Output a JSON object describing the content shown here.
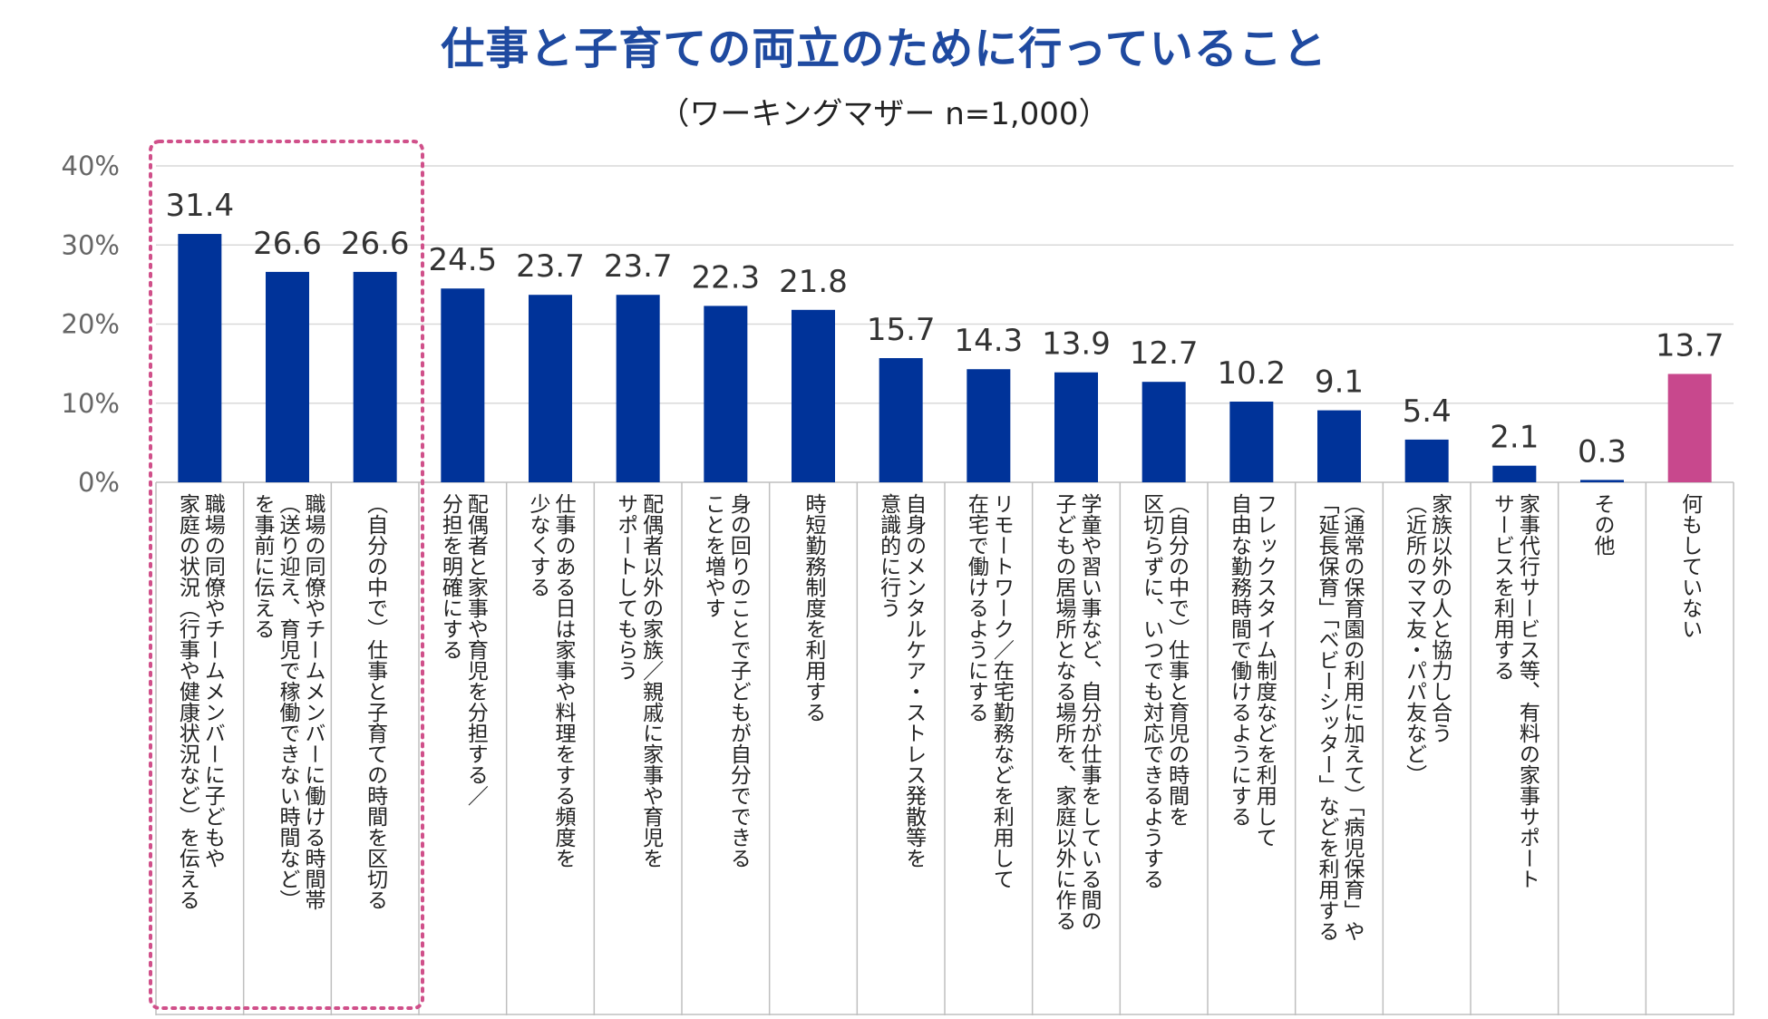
{
  "chart_data": {
    "type": "bar",
    "title": "仕事と子育ての両立のために行っていること",
    "subtitle": "（ワーキングマザー n=1,000）",
    "xlabel": "",
    "ylabel": "",
    "ylim": [
      0,
      40
    ],
    "y_ticks": [
      "0%",
      "10%",
      "20%",
      "30%",
      "40%"
    ],
    "grid": true,
    "highlight_group": "first-three-categories",
    "colors": {
      "bar": "#003399",
      "bar_highlight": "#c8488d",
      "grid": "#d9d9d9",
      "highlight_box": "#d0508a",
      "title": "#1f4aa0"
    },
    "categories": [
      [
        "職場の同僚やチームメンバーに子どもや",
        "家庭の状況（行事や健康状況など）を伝える"
      ],
      [
        "職場の同僚やチームメンバーに働ける時間帯",
        "（送り迎え、育児で稼働できない時間など）",
        "を事前に伝える"
      ],
      [
        "（自分の中で）仕事と子育ての時間を区切る"
      ],
      [
        "配偶者と家事や育児を分担する／",
        "分担を明確にする"
      ],
      [
        "仕事のある日は家事や料理をする頻度を",
        "少なくする"
      ],
      [
        "配偶者以外の家族／親戚に家事や育児を",
        "サポートしてもらう"
      ],
      [
        "身の回りのことで子どもが自分でできる",
        "ことを増やす"
      ],
      [
        "時短勤務制度を利用する"
      ],
      [
        "自身のメンタルケア・ストレス発散等を",
        "意識的に行う"
      ],
      [
        "リモートワーク／在宅勤務などを利用して",
        "在宅で働けるようにする"
      ],
      [
        "学童や習い事など、自分が仕事をしている間の",
        "子どもの居場所となる場所を、家庭以外に作る"
      ],
      [
        "（自分の中で）仕事と育児の時間を",
        "区切らずに、いつでも対応できるようする"
      ],
      [
        "フレックスタイム制度などを利用して",
        "自由な勤務時間で働けるようにする"
      ],
      [
        "（通常の保育園の利用に加えて）「病児保育」や",
        "「延長保育」「ベビーシッター」などを利用する"
      ],
      [
        "家族以外の人と協力し合う",
        "（近所のママ友・パパ友など）"
      ],
      [
        "家事代行サービス等、有料の家事サポート",
        "サービスを利用する"
      ],
      [
        "その他"
      ],
      [
        "何もしていない"
      ]
    ],
    "values": [
      31.4,
      26.6,
      26.6,
      24.5,
      23.7,
      23.7,
      22.3,
      21.8,
      15.7,
      14.3,
      13.9,
      12.7,
      10.2,
      9.1,
      5.4,
      2.1,
      0.3,
      13.7
    ],
    "value_labels": [
      "31.4",
      "26.6",
      "26.6",
      "24.5",
      "23.7",
      "23.7",
      "22.3",
      "21.8",
      "15.7",
      "14.3",
      "13.9",
      "12.7",
      "10.2",
      "9.1",
      "5.4",
      "2.1",
      "0.3",
      "13.7"
    ],
    "highlighted_bar_index": 17
  }
}
